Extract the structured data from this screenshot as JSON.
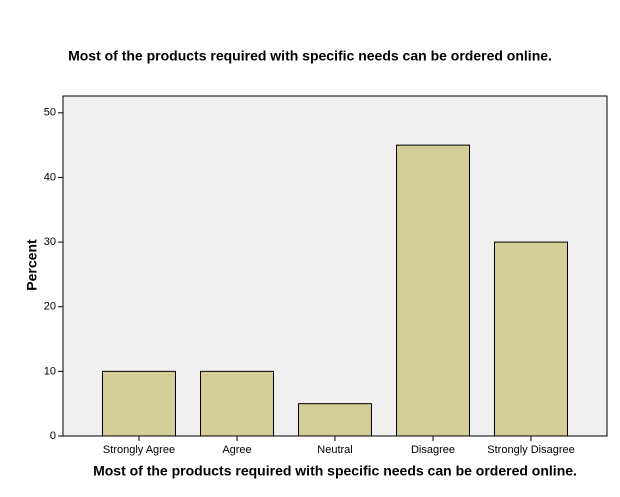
{
  "chart_data": {
    "type": "bar",
    "title": "Most of the products required with specific needs can be ordered online.",
    "xlabel": "Most of the products required with specific needs can be ordered online.",
    "ylabel": "Percent",
    "categories": [
      "Strongly Agree",
      "Agree",
      "Neutral",
      "Disagree",
      "Strongly Disagree"
    ],
    "values": [
      10,
      10,
      5,
      45,
      30
    ],
    "color": "#d3ce97",
    "ylim": [
      0,
      52.6
    ],
    "yticks": [
      0,
      10,
      20,
      30,
      40,
      50
    ],
    "grid": false
  }
}
